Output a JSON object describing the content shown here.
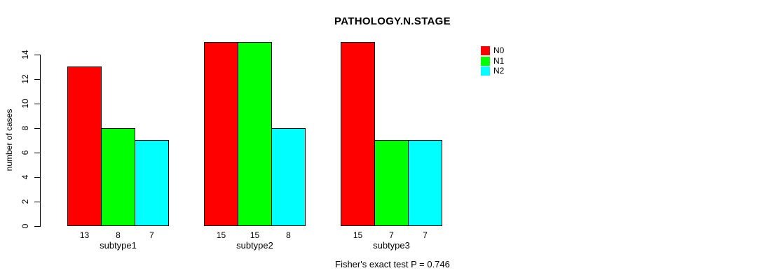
{
  "chart_data": {
    "type": "bar",
    "title": "PATHOLOGY.N.STAGE",
    "ylabel": "number of cases",
    "xlabel": "",
    "annotation": "Fisher's exact test P = 0.746",
    "categories": [
      "subtype1",
      "subtype2",
      "subtype3"
    ],
    "series": [
      {
        "name": "N0",
        "color": "#ff0000",
        "values": [
          13,
          15,
          15
        ]
      },
      {
        "name": "N1",
        "color": "#00ff00",
        "values": [
          8,
          15,
          7
        ]
      },
      {
        "name": "N2",
        "color": "#00ffff",
        "values": [
          7,
          8,
          7
        ]
      }
    ],
    "bar_value_labels": [
      [
        13,
        8,
        7
      ],
      [
        15,
        15,
        8
      ],
      [
        15,
        7,
        7
      ]
    ],
    "ylim": [
      0,
      15
    ],
    "yticks": [
      0,
      2,
      4,
      6,
      8,
      10,
      12,
      14
    ],
    "grid": false,
    "legend": {
      "position": "top-right",
      "entries": [
        {
          "label": "N0",
          "color": "#ff0000"
        },
        {
          "label": "N1",
          "color": "#00ff00"
        },
        {
          "label": "N2",
          "color": "#00ffff"
        }
      ]
    },
    "bar_border_color": "#000000",
    "axis_color": "#000000",
    "background": "#ffffff"
  }
}
